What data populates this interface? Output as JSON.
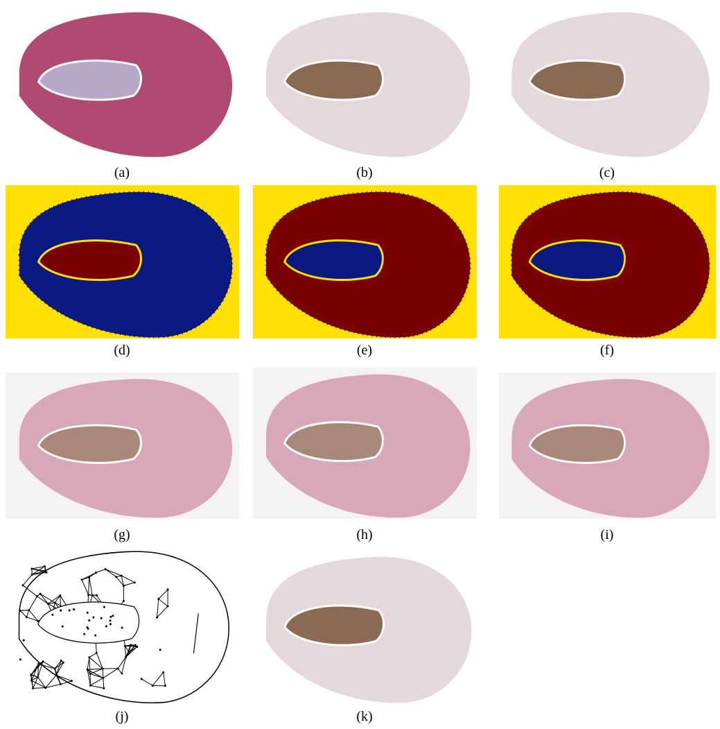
{
  "panels": [
    {
      "caption": "(a)"
    },
    {
      "caption": "(b)"
    },
    {
      "caption": "(c)"
    },
    {
      "caption": "(d)"
    },
    {
      "caption": "(e)"
    },
    {
      "caption": "(f)"
    },
    {
      "caption": "(g)"
    },
    {
      "caption": "(h)"
    },
    {
      "caption": "(i)"
    },
    {
      "caption": "(j)"
    },
    {
      "caption": "(k)"
    }
  ]
}
